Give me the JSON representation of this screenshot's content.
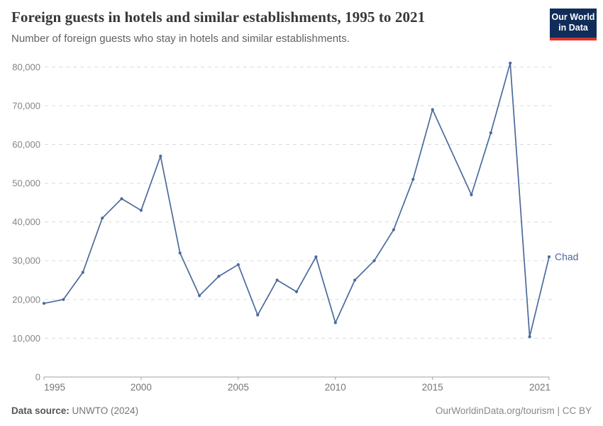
{
  "header": {
    "title": "Foreign guests in hotels and similar establishments, 1995 to 2021",
    "subtitle": "Number of foreign guests who stay in hotels and similar establishments."
  },
  "logo": {
    "line1": "Our World",
    "line2": "in Data",
    "bg_color": "#102D59",
    "bar_color": "#D8352F"
  },
  "footer": {
    "source_label": "Data source:",
    "source_value": "UNWTO (2024)",
    "right_text": "OurWorldinData.org/tourism | CC BY"
  },
  "chart_data": {
    "type": "line",
    "title": "Foreign guests in hotels and similar establishments, 1995 to 2021",
    "ylabel": "",
    "xlabel": "",
    "entity": "Chad",
    "x": [
      1995,
      1996,
      1997,
      1998,
      1999,
      2000,
      2001,
      2002,
      2003,
      2004,
      2005,
      2006,
      2007,
      2008,
      2009,
      2010,
      2011,
      2012,
      2013,
      2014,
      2015,
      2016,
      2017,
      2018,
      2019,
      2020,
      2021
    ],
    "series": [
      {
        "name": "Chad",
        "values": [
          19000,
          20000,
          27000,
          41000,
          46000,
          43000,
          57000,
          32000,
          21000,
          26000,
          29000,
          16000,
          25000,
          22000,
          31000,
          14000,
          25000,
          30000,
          38000,
          51000,
          69000,
          null,
          47000,
          63000,
          81000,
          10400,
          31000
        ]
      }
    ],
    "xlim": [
      1995,
      2021
    ],
    "ylim": [
      0,
      80000
    ],
    "yticks": [
      0,
      10000,
      20000,
      30000,
      40000,
      50000,
      60000,
      70000,
      80000
    ],
    "xticks": [
      1995,
      2000,
      2005,
      2010,
      2015,
      2021
    ],
    "grid": true,
    "gridline_color": "#dcdcdc",
    "axis_color": "#a1a1a1",
    "tick_label_color": "#858585",
    "line_color": "#4C6A9C",
    "legend_position": "end-of-line"
  }
}
